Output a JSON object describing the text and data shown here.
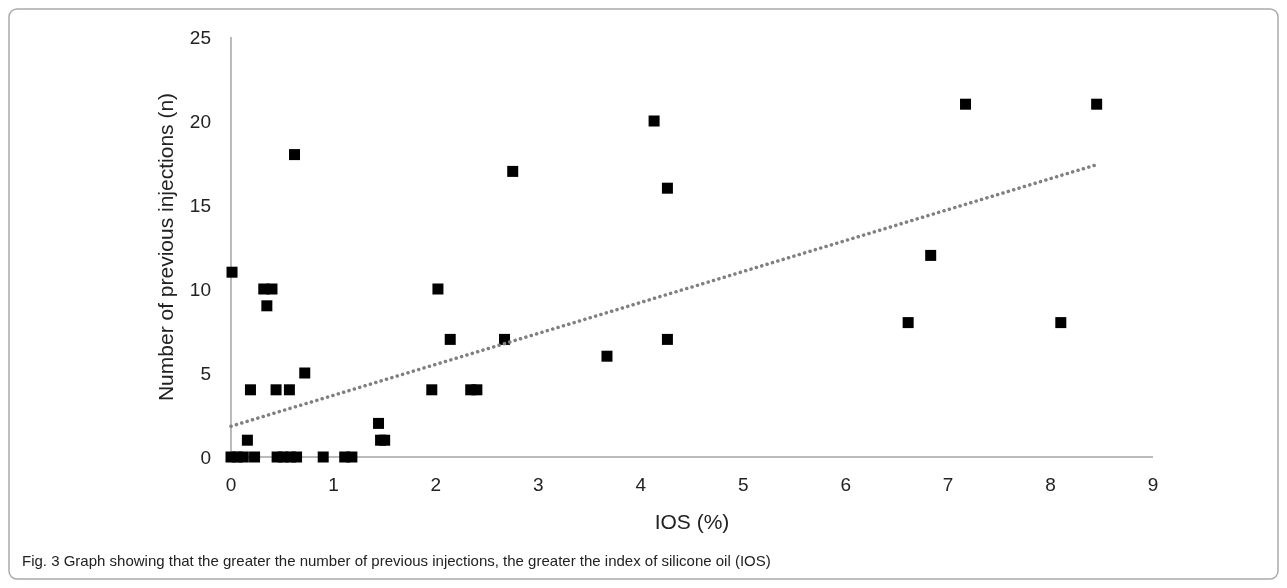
{
  "chart_data": {
    "type": "scatter",
    "xlabel": "IOS (%)",
    "ylabel": "Number of previous injections (n)",
    "annotations": [
      "Fig. 3  Graph showing that the greater the number of previous injections, the greater the index of silicone oil (IOS)"
    ],
    "xlim": [
      0,
      9
    ],
    "xticks": [
      0,
      1,
      2,
      3,
      4,
      5,
      6,
      7,
      8,
      9
    ],
    "ylim": [
      0,
      25
    ],
    "yticks": [
      0,
      5,
      10,
      15,
      20,
      25
    ],
    "grid": false,
    "series": [
      {
        "color": "#000000",
        "marker": "square",
        "x": [
          0.01,
          0.62,
          2.75,
          0.32,
          0.4,
          0.35,
          2.02,
          2.14,
          2.67,
          0.72,
          0.19,
          0.44,
          0.57,
          1.96,
          2.34,
          2.4,
          1.44,
          1.46,
          1.5,
          0.16,
          0,
          0.06,
          0.12,
          0.23,
          0.45,
          0.51,
          0.58,
          0.64,
          0.9,
          1.11,
          1.18,
          4.13,
          4.26,
          4.26,
          3.67,
          6.61,
          6.83,
          7.17,
          8.1,
          8.45
        ],
        "values": [
          11,
          18,
          17,
          10,
          10,
          9,
          10,
          7,
          7,
          5,
          4,
          4,
          4,
          4,
          4,
          4,
          2,
          1,
          1,
          1,
          0,
          0,
          0,
          0,
          0,
          0,
          0,
          0,
          0,
          0,
          0,
          20,
          16,
          7,
          6,
          8,
          12,
          21,
          8,
          21
        ]
      },
      {
        "type": "line",
        "color": "#808080",
        "line_style": "dotted",
        "marker": "none",
        "x": [
          0,
          8.45
        ],
        "values": [
          1.83,
          17.4
        ]
      }
    ]
  }
}
